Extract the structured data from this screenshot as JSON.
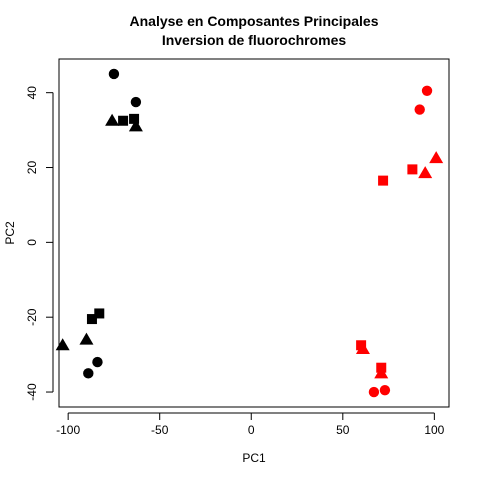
{
  "chart_data": {
    "type": "scatter",
    "title": "Analyse en Composantes Principales",
    "subtitle": "Inversion de fluorochromes",
    "xlabel": "PC1",
    "ylabel": "PC2",
    "xlim": [
      -105,
      108
    ],
    "ylim": [
      -44,
      49
    ],
    "xticks": [
      -100,
      -50,
      0,
      50,
      100
    ],
    "yticks": [
      -40,
      -20,
      0,
      20,
      40
    ],
    "grid": false,
    "colors": {
      "black": "#000000",
      "red": "#ff0000"
    },
    "points": [
      {
        "x": -75,
        "y": 45,
        "shape": "circle",
        "color": "black"
      },
      {
        "x": -63,
        "y": 37.5,
        "shape": "circle",
        "color": "black"
      },
      {
        "x": -76,
        "y": 32.5,
        "shape": "triangle",
        "color": "black"
      },
      {
        "x": -70,
        "y": 32.5,
        "shape": "square",
        "color": "black"
      },
      {
        "x": -64,
        "y": 33,
        "shape": "square",
        "color": "black"
      },
      {
        "x": -63,
        "y": 31,
        "shape": "triangle",
        "color": "black"
      },
      {
        "x": -83,
        "y": -19,
        "shape": "square",
        "color": "black"
      },
      {
        "x": -87,
        "y": -20.5,
        "shape": "square",
        "color": "black"
      },
      {
        "x": -90,
        "y": -26,
        "shape": "triangle",
        "color": "black"
      },
      {
        "x": -103,
        "y": -27.5,
        "shape": "triangle",
        "color": "black"
      },
      {
        "x": -84,
        "y": -32,
        "shape": "circle",
        "color": "black"
      },
      {
        "x": -89,
        "y": -35,
        "shape": "circle",
        "color": "black"
      },
      {
        "x": 96,
        "y": 40.5,
        "shape": "circle",
        "color": "red"
      },
      {
        "x": 92,
        "y": 35.5,
        "shape": "circle",
        "color": "red"
      },
      {
        "x": 101,
        "y": 22.5,
        "shape": "triangle",
        "color": "red"
      },
      {
        "x": 88,
        "y": 19.5,
        "shape": "square",
        "color": "red"
      },
      {
        "x": 95,
        "y": 18.5,
        "shape": "triangle",
        "color": "red"
      },
      {
        "x": 72,
        "y": 16.5,
        "shape": "square",
        "color": "red"
      },
      {
        "x": 60,
        "y": -27.5,
        "shape": "square",
        "color": "red"
      },
      {
        "x": 61,
        "y": -28.5,
        "shape": "triangle",
        "color": "red"
      },
      {
        "x": 71,
        "y": -33.5,
        "shape": "square",
        "color": "red"
      },
      {
        "x": 71,
        "y": -35,
        "shape": "triangle",
        "color": "red"
      },
      {
        "x": 73,
        "y": -39.5,
        "shape": "circle",
        "color": "red"
      },
      {
        "x": 67,
        "y": -40,
        "shape": "circle",
        "color": "red"
      }
    ]
  }
}
